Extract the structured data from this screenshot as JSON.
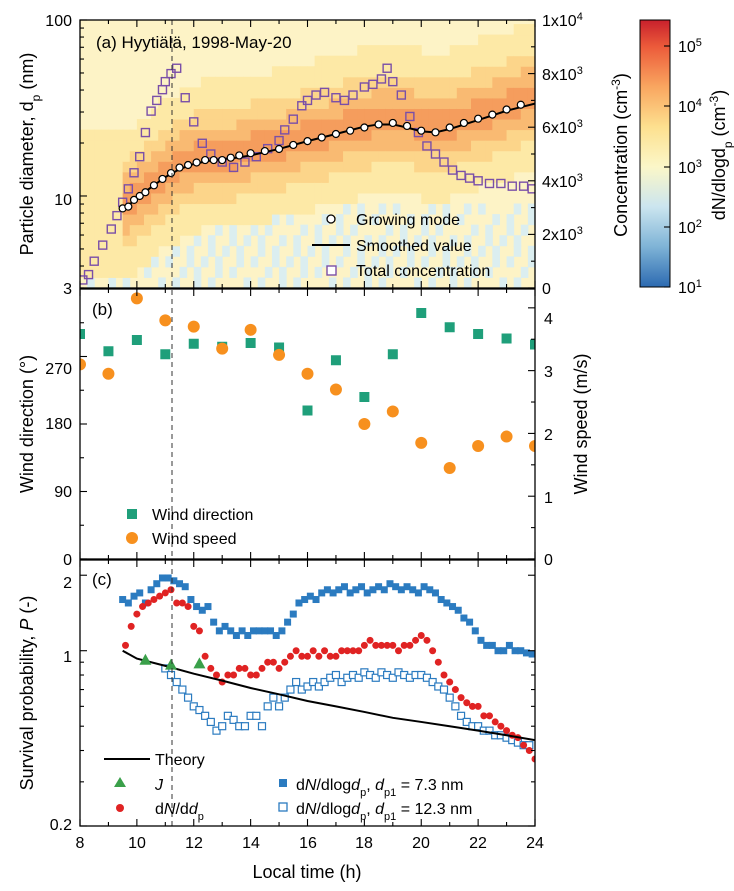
{
  "panel_a": {
    "title": "(a) Hyytiälä, 1998-May-20",
    "ylabel": "Particle diameter, d",
    "ylabel_sub": "p",
    "ylabel_unit": " (nm)",
    "yticks": [
      "3",
      "10",
      "100"
    ],
    "right_ylabel": "Concentration (cm",
    "right_ylabel_sup": "-3",
    "right_ylabel_end": ")",
    "right_ticks": [
      "0",
      "2x10",
      "4x10",
      "6x10",
      "8x10",
      "1x10"
    ],
    "right_tick_exps": [
      "",
      "3",
      "3",
      "3",
      "3",
      "4"
    ],
    "legend": [
      "Growing mode",
      "Smoothed value",
      "Total concentration"
    ],
    "colorbar_label": "dN/dlogd",
    "colorbar_label_sub": "p",
    "colorbar_label_unit": " (cm",
    "colorbar_label_sup": "-3",
    "colorbar_label_end": ")",
    "colorbar_ticks": [
      "10",
      "10",
      "10",
      "10",
      "10"
    ],
    "colorbar_exps": [
      "1",
      "2",
      "3",
      "4",
      "5"
    ]
  },
  "panel_b": {
    "title": "(b)",
    "ylabel": "Wind direction (°)",
    "yticks": [
      "0",
      "90",
      "180",
      "270"
    ],
    "right_ylabel": "Wind speed (m/s)",
    "right_ticks": [
      "0",
      "1",
      "2",
      "3",
      "4"
    ],
    "legend": [
      "Wind direction",
      "Wind speed"
    ]
  },
  "panel_c": {
    "title": "(c)",
    "ylabel": "Survival probability, P (-)",
    "yticks": [
      "0.2",
      "1",
      "2"
    ],
    "legend": [
      "Theory",
      "J",
      "dN/dd",
      "dN/dlogd , d   = 7.3 nm",
      "dN/dlogd , d   = 12.3 nm"
    ]
  },
  "xlabel": "Local time (h)",
  "xticks": [
    "8",
    "10",
    "12",
    "14",
    "16",
    "18",
    "20",
    "22",
    "24"
  ],
  "colors": {
    "growing_mode": "#000000",
    "total_conc": "#7a4fa8",
    "wind_dir": "#1f9f7a",
    "wind_speed": "#f7901e",
    "theory": "#000000",
    "J": "#3aa04a",
    "dNdd": "#e02323",
    "dlog73": "#2b7bc0",
    "dlog123": "#2b7bc0"
  },
  "chart_data": [
    {
      "type": "heatmap",
      "panel": "a",
      "title": "(a) Hyytiälä, 1998-May-20",
      "xlabel": "Local time (h)",
      "ylabel": "Particle diameter, dp (nm)",
      "xlim": [
        8,
        24
      ],
      "ylim": [
        3,
        100
      ],
      "yscale": "log",
      "colorbar_range": [
        10,
        200000
      ],
      "series": [
        {
          "name": "Growing mode",
          "x": [
            9.5,
            9.7,
            9.9,
            10.1,
            10.3,
            10.6,
            10.9,
            11.2,
            11.5,
            11.8,
            12.1,
            12.4,
            12.7,
            13.0,
            13.3,
            13.6,
            14.0,
            14.5,
            15.0,
            15.5,
            16.0,
            16.5,
            17.0,
            17.5,
            18.0,
            18.5,
            19.0,
            19.5,
            20.0,
            20.5,
            21.0,
            21.5,
            22.0,
            22.5,
            23.0,
            23.5
          ],
          "y": [
            8.5,
            8.7,
            9.5,
            10.0,
            10.5,
            11.5,
            12.5,
            13.5,
            14.5,
            15.0,
            15.5,
            16.0,
            16.0,
            16.0,
            16.5,
            17.0,
            17.5,
            18.0,
            18.5,
            19.5,
            20.5,
            21.5,
            22.5,
            23.5,
            24.5,
            25.5,
            26.0,
            25.0,
            23.5,
            23.0,
            24.5,
            26.0,
            27.5,
            29.0,
            31.0,
            33.0
          ]
        },
        {
          "name": "Smoothed value",
          "x": [
            9.5,
            10.0,
            10.5,
            11.0,
            11.5,
            12.0,
            12.5,
            13.0,
            13.5,
            14.0,
            15.0,
            16.0,
            17.0,
            18.0,
            18.5,
            19.0,
            19.5,
            20.0,
            20.5,
            21.0,
            22.0,
            23.0,
            24.0
          ],
          "y": [
            8.3,
            9.7,
            11.2,
            12.8,
            14.2,
            15.2,
            15.8,
            16.2,
            16.5,
            17.0,
            18.5,
            20.5,
            22.5,
            24.8,
            25.5,
            25.5,
            24.5,
            23.3,
            23.0,
            24.0,
            27.0,
            30.5,
            33.5
          ]
        },
        {
          "name": "Total concentration",
          "axis": "right",
          "x": [
            8.1,
            8.3,
            8.5,
            8.8,
            9.1,
            9.3,
            9.5,
            9.7,
            9.9,
            10.1,
            10.3,
            10.5,
            10.7,
            10.9,
            11.0,
            11.2,
            11.4,
            11.7,
            12.0,
            12.3,
            12.6,
            13.0,
            13.4,
            13.8,
            14.2,
            14.6,
            15.0,
            15.2,
            15.5,
            15.8,
            16.0,
            16.3,
            16.6,
            17.0,
            17.3,
            17.6,
            18.0,
            18.3,
            18.6,
            18.8,
            19.0,
            19.3,
            19.6,
            19.9,
            20.2,
            20.5,
            20.8,
            21.1,
            21.4,
            21.7,
            22.0,
            22.4,
            22.8,
            23.2,
            23.6,
            23.9
          ],
          "y": [
            300,
            500,
            1000,
            1600,
            2200,
            2700,
            3200,
            3700,
            4300,
            4900,
            5800,
            6600,
            7000,
            7400,
            7700,
            8000,
            8200,
            7100,
            6200,
            5400,
            5000,
            4700,
            4500,
            4700,
            4900,
            5200,
            5500,
            5900,
            6300,
            6800,
            7000,
            7200,
            7300,
            7100,
            7000,
            7200,
            7500,
            7600,
            7800,
            8200,
            7700,
            7200,
            6400,
            5800,
            5300,
            5000,
            4700,
            4400,
            4200,
            4100,
            4000,
            3900,
            3900,
            3800,
            3800,
            3700
          ]
        }
      ]
    },
    {
      "type": "scatter",
      "panel": "b",
      "title": "(b)",
      "xlabel": "Local time (h)",
      "ylabel": "Wind direction (°)",
      "right_ylabel": "Wind speed (m/s)",
      "xlim": [
        8,
        24
      ],
      "ylim": [
        0,
        360
      ],
      "right_ylim": [
        0,
        4.3
      ],
      "series": [
        {
          "name": "Wind direction",
          "axis": "left",
          "x": [
            8,
            9,
            10,
            11,
            12,
            13,
            14,
            15,
            16,
            17,
            18,
            19,
            20,
            21,
            22,
            23,
            24
          ],
          "y": [
            300,
            277,
            292,
            273,
            287,
            283,
            288,
            282,
            198,
            265,
            216,
            273,
            328,
            309,
            300,
            294,
            286
          ]
        },
        {
          "name": "Wind speed",
          "axis": "right",
          "x": [
            8,
            9,
            10,
            11,
            12,
            13,
            14,
            15,
            16,
            17,
            18,
            19,
            20,
            21,
            22,
            23,
            24
          ],
          "y": [
            3.1,
            2.95,
            4.15,
            3.8,
            3.7,
            3.35,
            3.65,
            3.25,
            2.95,
            2.7,
            2.15,
            2.35,
            1.85,
            1.45,
            1.8,
            1.95,
            1.8
          ]
        }
      ]
    },
    {
      "type": "scatter",
      "panel": "c",
      "title": "(c)",
      "xlabel": "Local time (h)",
      "ylabel": "Survival probability, P (-)",
      "xlim": [
        8,
        24
      ],
      "ylim": [
        0.2,
        2.3
      ],
      "yscale": "log",
      "series": [
        {
          "name": "Theory",
          "type": "line",
          "x": [
            9.5,
            10,
            11,
            12,
            13,
            14,
            15,
            16,
            17,
            18,
            19,
            20,
            21,
            22,
            23,
            24
          ],
          "y": [
            1.0,
            0.93,
            0.87,
            0.81,
            0.76,
            0.71,
            0.67,
            0.63,
            0.6,
            0.57,
            0.54,
            0.52,
            0.5,
            0.48,
            0.46,
            0.44
          ]
        },
        {
          "name": "J",
          "x": [
            10.3,
            11.2,
            12.2
          ],
          "y": [
            0.92,
            0.88,
            0.89
          ]
        },
        {
          "name": "dN/ddp",
          "x": [
            9.6,
            9.8,
            10.0,
            10.2,
            10.4,
            10.6,
            10.8,
            11.0,
            11.2,
            11.4,
            11.6,
            11.8,
            12.0,
            12.2,
            12.4,
            12.6,
            12.8,
            13.0,
            13.2,
            13.4,
            13.6,
            13.8,
            14.0,
            14.2,
            14.4,
            14.6,
            14.8,
            15.0,
            15.2,
            15.4,
            15.6,
            15.8,
            16.0,
            16.2,
            16.4,
            16.6,
            16.8,
            17.0,
            17.2,
            17.4,
            17.6,
            17.8,
            18.0,
            18.2,
            18.4,
            18.6,
            18.8,
            19.0,
            19.2,
            19.4,
            19.6,
            19.8,
            20.0,
            20.2,
            20.4,
            20.6,
            20.8,
            21.0,
            21.2,
            21.4,
            21.6,
            21.8,
            22.0,
            22.2,
            22.4,
            22.6,
            22.8,
            23.0,
            23.2,
            23.4,
            23.6,
            23.8,
            24.0
          ],
          "y": [
            1.05,
            1.25,
            1.4,
            1.5,
            1.55,
            1.6,
            1.65,
            1.7,
            1.75,
            1.55,
            1.55,
            1.5,
            1.25,
            1.2,
            0.95,
            0.85,
            0.8,
            0.75,
            0.8,
            0.8,
            0.85,
            0.85,
            0.8,
            0.8,
            0.85,
            0.9,
            0.9,
            0.85,
            0.9,
            0.95,
            1.0,
            0.95,
            0.95,
            1.0,
            0.95,
            1.0,
            0.95,
            0.95,
            1.0,
            1.0,
            1.0,
            1.0,
            1.05,
            1.1,
            1.05,
            1.05,
            1.05,
            1.05,
            1.0,
            1.05,
            1.05,
            1.1,
            1.15,
            1.1,
            1.0,
            0.9,
            0.8,
            0.75,
            0.7,
            0.65,
            0.62,
            0.6,
            0.6,
            0.55,
            0.55,
            0.52,
            0.5,
            0.48,
            0.46,
            0.45,
            0.42,
            0.4,
            0.37
          ]
        },
        {
          "name": "dN/dlogdp, dp1 = 7.3 nm",
          "x": [
            9.5,
            9.7,
            9.9,
            10.1,
            10.3,
            10.5,
            10.7,
            10.9,
            11.1,
            11.3,
            11.5,
            11.7,
            11.9,
            12.1,
            12.3,
            12.5,
            12.7,
            12.9,
            13.1,
            13.3,
            13.5,
            13.7,
            13.9,
            14.1,
            14.3,
            14.5,
            14.7,
            14.9,
            15.1,
            15.3,
            15.5,
            15.7,
            15.9,
            16.1,
            16.3,
            16.5,
            16.7,
            16.9,
            17.1,
            17.3,
            17.5,
            17.7,
            17.9,
            18.1,
            18.3,
            18.5,
            18.7,
            18.9,
            19.1,
            19.3,
            19.5,
            19.7,
            19.9,
            20.1,
            20.3,
            20.5,
            20.7,
            20.9,
            21.1,
            21.3,
            21.5,
            21.7,
            21.9,
            22.1,
            22.3,
            22.5,
            22.7,
            22.9,
            23.1,
            23.3,
            23.5,
            23.7,
            23.9
          ],
          "y": [
            1.6,
            1.55,
            1.65,
            1.7,
            1.55,
            1.75,
            1.85,
            1.95,
            1.95,
            1.9,
            1.85,
            1.8,
            1.6,
            1.5,
            1.45,
            1.5,
            1.3,
            1.2,
            1.25,
            1.2,
            1.15,
            1.2,
            1.15,
            1.2,
            1.2,
            1.2,
            1.2,
            1.15,
            1.2,
            1.3,
            1.4,
            1.55,
            1.6,
            1.65,
            1.6,
            1.7,
            1.75,
            1.7,
            1.75,
            1.8,
            1.7,
            1.75,
            1.8,
            1.7,
            1.75,
            1.8,
            1.75,
            1.85,
            1.8,
            1.75,
            1.8,
            1.75,
            1.7,
            1.8,
            1.75,
            1.7,
            1.6,
            1.55,
            1.5,
            1.45,
            1.35,
            1.3,
            1.2,
            1.1,
            1.05,
            1.05,
            1.0,
            1.0,
            1.05,
            1.0,
            1.0,
            0.98,
            0.97
          ]
        },
        {
          "name": "dN/dlogdp, dp1 = 12.3 nm",
          "x": [
            11.0,
            11.2,
            11.4,
            11.6,
            11.8,
            12.0,
            12.2,
            12.4,
            12.6,
            12.8,
            13.0,
            13.2,
            13.4,
            13.6,
            13.8,
            14.0,
            14.2,
            14.4,
            14.6,
            14.8,
            15.0,
            15.2,
            15.4,
            15.6,
            15.8,
            16.0,
            16.2,
            16.4,
            16.6,
            16.8,
            17.0,
            17.2,
            17.4,
            17.6,
            17.8,
            18.0,
            18.2,
            18.4,
            18.6,
            18.8,
            19.0,
            19.2,
            19.4,
            19.6,
            19.8,
            20.0,
            20.2,
            20.4,
            20.6,
            20.8,
            21.0,
            21.2,
            21.4,
            21.6,
            21.8,
            22.0,
            22.2,
            22.4,
            22.6,
            22.8,
            23.0,
            23.2,
            23.4,
            23.6,
            23.8
          ],
          "y": [
            0.85,
            0.8,
            0.75,
            0.7,
            0.65,
            0.6,
            0.58,
            0.55,
            0.52,
            0.48,
            0.5,
            0.55,
            0.53,
            0.5,
            0.5,
            0.55,
            0.55,
            0.5,
            0.6,
            0.65,
            0.6,
            0.65,
            0.7,
            0.75,
            0.7,
            0.72,
            0.75,
            0.72,
            0.75,
            0.78,
            0.8,
            0.75,
            0.78,
            0.8,
            0.78,
            0.82,
            0.8,
            0.78,
            0.82,
            0.8,
            0.78,
            0.82,
            0.8,
            0.78,
            0.8,
            0.8,
            0.78,
            0.75,
            0.72,
            0.7,
            0.65,
            0.6,
            0.55,
            0.52,
            0.5,
            0.5,
            0.48,
            0.48,
            0.46,
            0.46,
            0.45,
            0.44,
            0.43,
            0.42,
            0.42
          ]
        }
      ]
    }
  ]
}
